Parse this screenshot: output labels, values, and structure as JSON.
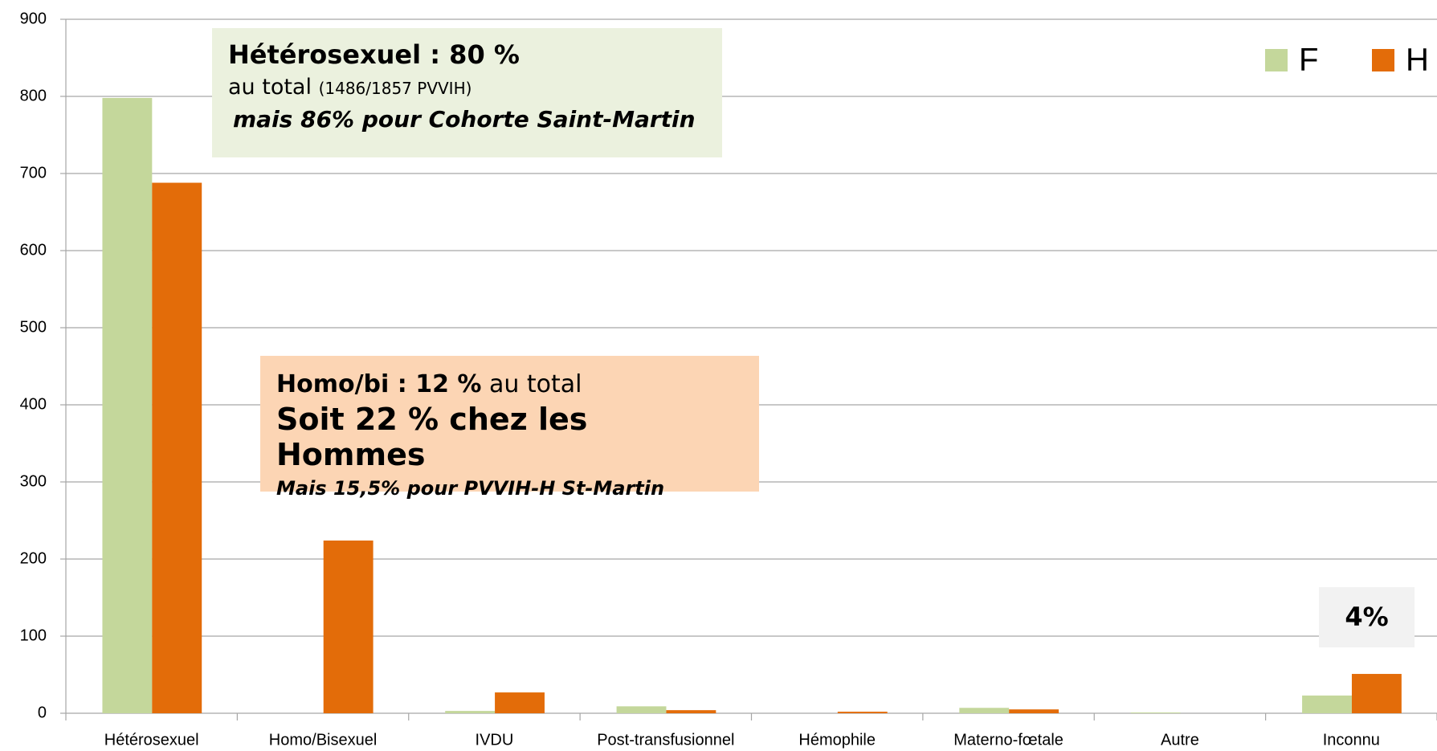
{
  "chart_data": {
    "type": "bar",
    "categories": [
      "Hétérosexuel",
      "Homo/Bisexuel",
      "IVDU",
      "Post-transfusionnel",
      "Hémophile",
      "Materno-fœtale",
      "Autre",
      "Inconnu"
    ],
    "series": [
      {
        "name": "F",
        "color": "#c4d79b",
        "values": [
          798,
          0,
          3,
          9,
          0,
          7,
          1,
          23
        ]
      },
      {
        "name": "H",
        "color": "#e36c09",
        "values": [
          688,
          224,
          27,
          4,
          2,
          5,
          0,
          51
        ]
      }
    ],
    "ylim": [
      0,
      900
    ],
    "yticks": [
      0,
      100,
      200,
      300,
      400,
      500,
      600,
      700,
      800,
      900
    ],
    "grid": true,
    "legend": "top-right",
    "annotations": [
      {
        "lines": [
          [
            "Hétérosexuel : 80 %"
          ],
          [
            "au total ",
            "(1486/1857 PVVIH)"
          ],
          [
            "mais 86% pour Cohorte Saint-Martin"
          ]
        ],
        "color": "#ebf1de"
      },
      {
        "lines": [
          [
            "Homo/bi : 12 %",
            " au total"
          ],
          [
            "Soit 22 % chez les Hommes"
          ],
          [
            "Mais 15,5% pour PVVIH-H St-Martin"
          ]
        ],
        "color": "#fcd5b4"
      },
      {
        "lines": [
          [
            "4%"
          ]
        ],
        "color": "#f2f2f2"
      }
    ]
  }
}
